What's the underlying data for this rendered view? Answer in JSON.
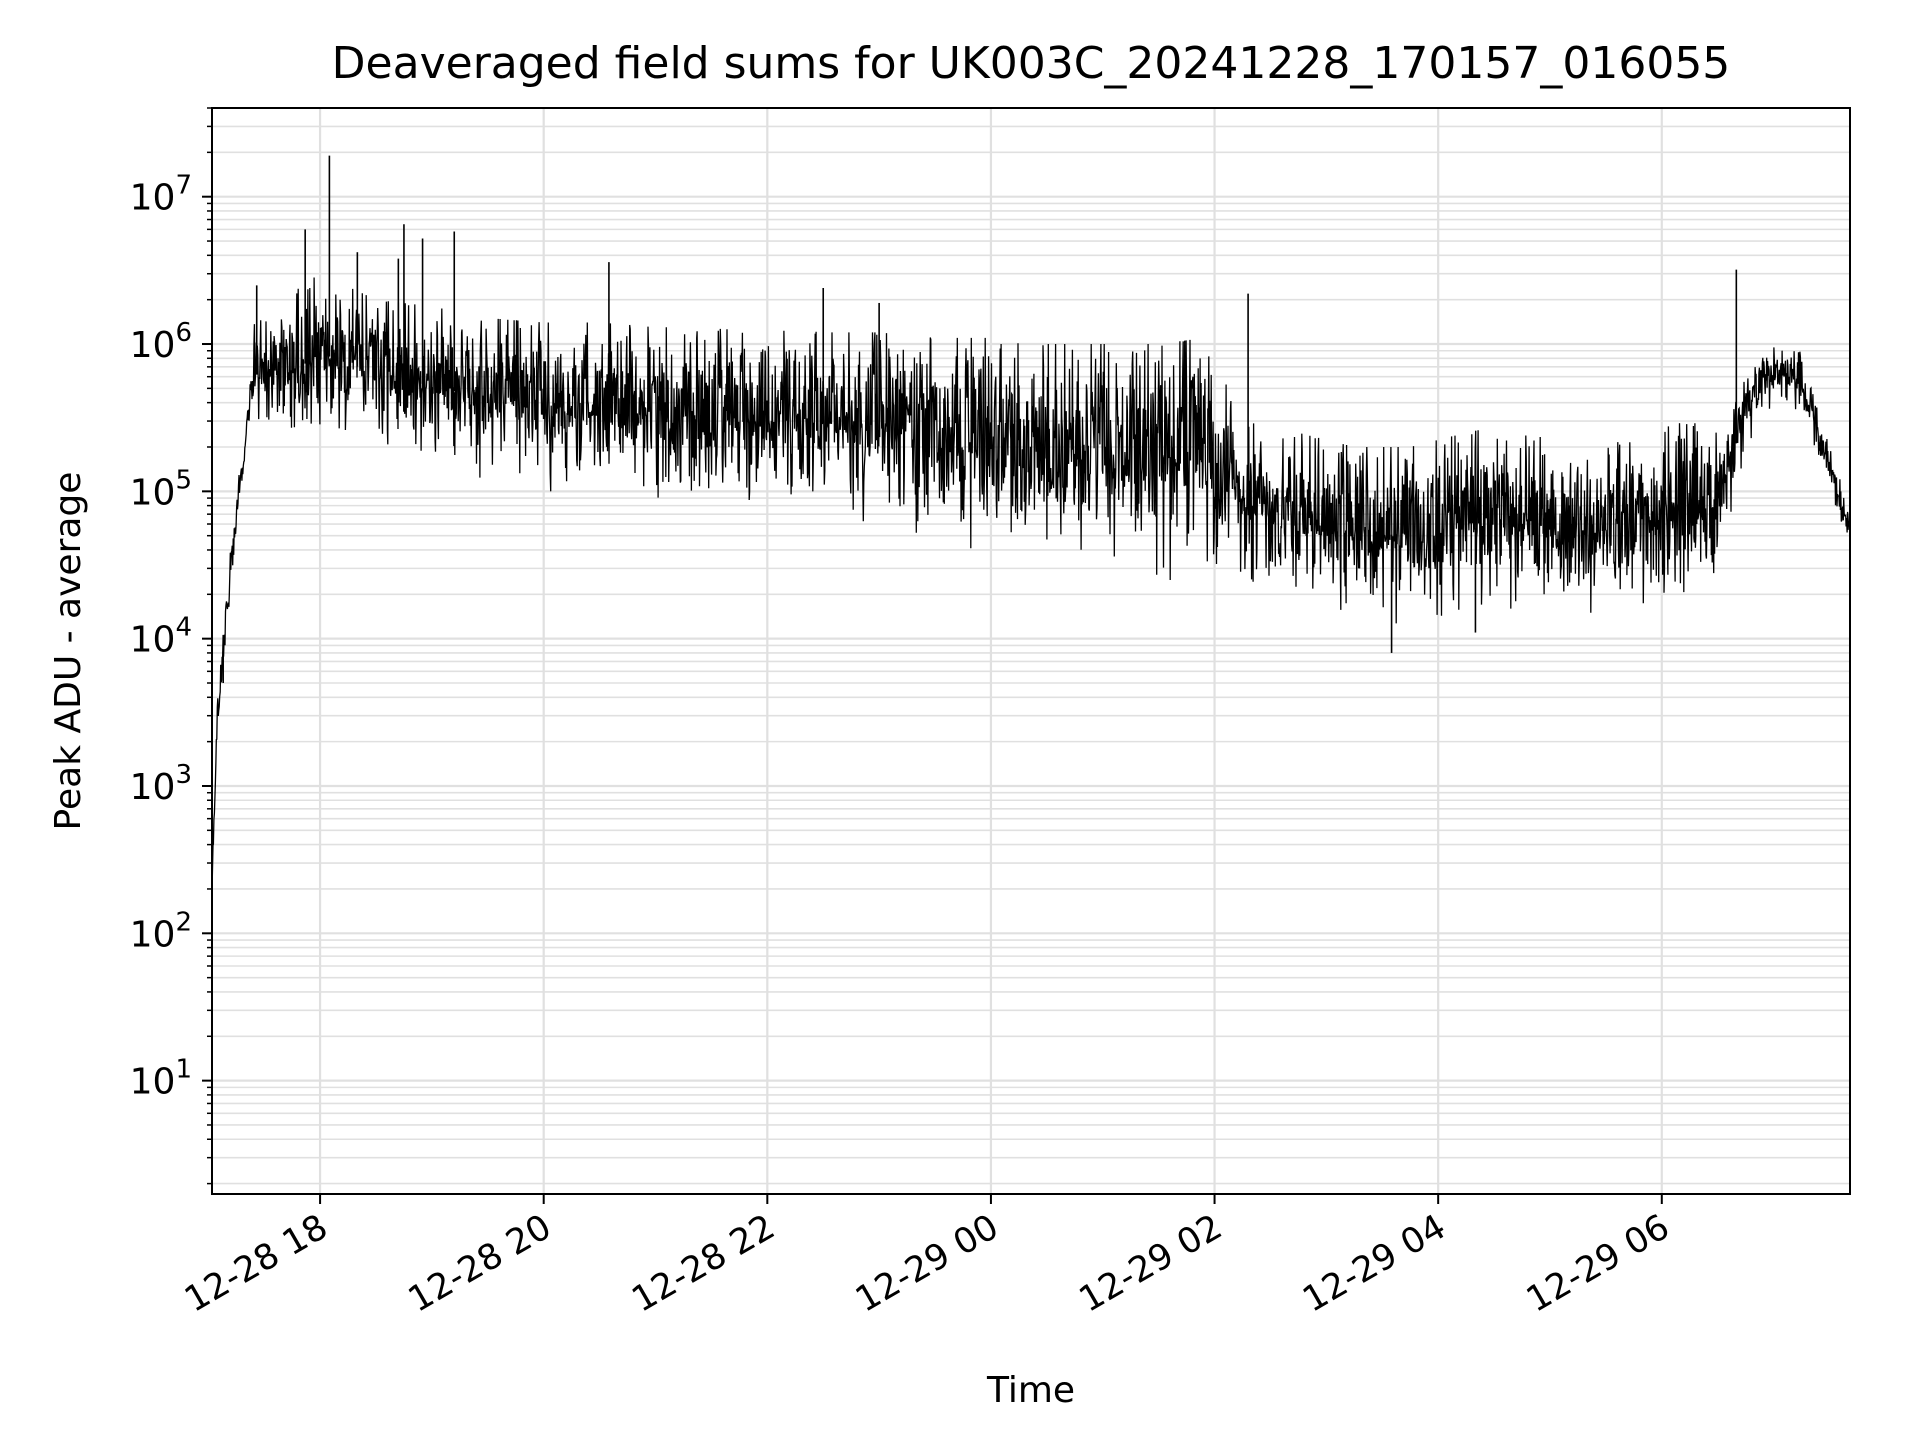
{
  "chart_data": {
    "type": "line",
    "title": "Deaveraged field sums for UK003C_20241228_170157_016055",
    "xlabel": "Time",
    "ylabel": "Peak ADU - average",
    "yscale": "log",
    "ylim": [
      1.7,
      40000000
    ],
    "xlim": [
      "2024-12-28 17:02",
      "2024-12-29 07:41"
    ],
    "grid": "both (major and minor), light gray",
    "legend": "none",
    "line_color": "#000000",
    "grid_color": "#e0e0e0",
    "x_ticks": [
      {
        "label": "12-28 18",
        "time": "2024-12-28 18:00"
      },
      {
        "label": "12-28 20",
        "time": "2024-12-28 20:00"
      },
      {
        "label": "12-28 22",
        "time": "2024-12-28 22:00"
      },
      {
        "label": "12-29 00",
        "time": "2024-12-29 00:00"
      },
      {
        "label": "12-29 02",
        "time": "2024-12-29 02:00"
      },
      {
        "label": "12-29 04",
        "time": "2024-12-29 04:00"
      },
      {
        "label": "12-29 06",
        "time": "2024-12-29 06:00"
      }
    ],
    "y_ticks": [
      {
        "base": "10",
        "exp": "1",
        "value": 10
      },
      {
        "base": "10",
        "exp": "2",
        "value": 100
      },
      {
        "base": "10",
        "exp": "3",
        "value": 1000
      },
      {
        "base": "10",
        "exp": "4",
        "value": 10000
      },
      {
        "base": "10",
        "exp": "5",
        "value": 100000
      },
      {
        "base": "10",
        "exp": "6",
        "value": 1000000
      },
      {
        "base": "10",
        "exp": "7",
        "value": 10000000
      }
    ],
    "series": [
      {
        "envelope": [
          {
            "time": "2024-12-28 17:02",
            "low": 150,
            "high": 300
          },
          {
            "time": "2024-12-28 17:05",
            "low": 2000,
            "high": 5000
          },
          {
            "time": "2024-12-28 17:10",
            "low": 8000,
            "high": 30000
          },
          {
            "time": "2024-12-28 17:15",
            "low": 40000,
            "high": 120000
          },
          {
            "time": "2024-12-28 17:20",
            "low": 150000,
            "high": 300000
          },
          {
            "time": "2024-12-28 17:25",
            "low": 250000,
            "high": 1500000
          },
          {
            "time": "2024-12-28 17:35",
            "low": 300000,
            "high": 1600000
          },
          {
            "time": "2024-12-28 17:50",
            "low": 200000,
            "high": 2500000
          },
          {
            "time": "2024-12-28 18:00",
            "low": 250000,
            "high": 3000000
          },
          {
            "time": "2024-12-28 18:30",
            "low": 200000,
            "high": 2000000
          },
          {
            "time": "2024-12-28 19:00",
            "low": 150000,
            "high": 1800000
          },
          {
            "time": "2024-12-28 19:30",
            "low": 120000,
            "high": 1500000
          },
          {
            "time": "2024-12-28 20:00",
            "low": 100000,
            "high": 1400000
          },
          {
            "time": "2024-12-28 20:30",
            "low": 100000,
            "high": 1400000
          },
          {
            "time": "2024-12-28 21:00",
            "low": 80000,
            "high": 1300000
          },
          {
            "time": "2024-12-28 21:30",
            "low": 80000,
            "high": 1300000
          },
          {
            "time": "2024-12-28 22:00",
            "low": 80000,
            "high": 1300000
          },
          {
            "time": "2024-12-28 22:30",
            "low": 70000,
            "high": 1200000
          },
          {
            "time": "2024-12-28 23:00",
            "low": 60000,
            "high": 1200000
          },
          {
            "time": "2024-12-28 23:30",
            "low": 40000,
            "high": 1100000
          },
          {
            "time": "2024-12-29 00:00",
            "low": 35000,
            "high": 1100000
          },
          {
            "time": "2024-12-29 00:30",
            "low": 30000,
            "high": 1000000
          },
          {
            "time": "2024-12-29 01:00",
            "low": 25000,
            "high": 1000000
          },
          {
            "time": "2024-12-29 01:30",
            "low": 25000,
            "high": 1000000
          },
          {
            "time": "2024-12-29 01:55",
            "low": 25000,
            "high": 1100000
          },
          {
            "time": "2024-12-29 02:15",
            "low": 20000,
            "high": 300000
          },
          {
            "time": "2024-12-29 02:45",
            "low": 18000,
            "high": 250000
          },
          {
            "time": "2024-12-29 03:15",
            "low": 15000,
            "high": 200000
          },
          {
            "time": "2024-12-29 03:45",
            "low": 12000,
            "high": 200000
          },
          {
            "time": "2024-12-29 04:15",
            "low": 12000,
            "high": 250000
          },
          {
            "time": "2024-12-29 04:45",
            "low": 14000,
            "high": 300000
          },
          {
            "time": "2024-12-29 05:15",
            "low": 15000,
            "high": 150000
          },
          {
            "time": "2024-12-29 05:45",
            "low": 15000,
            "high": 250000
          },
          {
            "time": "2024-12-29 06:15",
            "low": 15000,
            "high": 300000
          },
          {
            "time": "2024-12-29 06:30",
            "low": 25000,
            "high": 250000
          },
          {
            "time": "2024-12-29 06:45",
            "low": 200000,
            "high": 600000
          },
          {
            "time": "2024-12-29 07:00",
            "low": 400000,
            "high": 1000000
          },
          {
            "time": "2024-12-29 07:15",
            "low": 300000,
            "high": 900000
          },
          {
            "time": "2024-12-29 07:30",
            "low": 100000,
            "high": 200000
          },
          {
            "time": "2024-12-29 07:41",
            "low": 40000,
            "high": 80000
          }
        ],
        "spikes": [
          {
            "time": "2024-12-28 17:26",
            "value": 2500000
          },
          {
            "time": "2024-12-28 17:52",
            "value": 6000000
          },
          {
            "time": "2024-12-28 18:05",
            "value": 19000000
          },
          {
            "time": "2024-12-28 18:20",
            "value": 4200000
          },
          {
            "time": "2024-12-28 18:42",
            "value": 3800000
          },
          {
            "time": "2024-12-28 18:45",
            "value": 6500000
          },
          {
            "time": "2024-12-28 18:55",
            "value": 5200000
          },
          {
            "time": "2024-12-28 19:12",
            "value": 5800000
          },
          {
            "time": "2024-12-28 20:35",
            "value": 3600000
          },
          {
            "time": "2024-12-28 22:30",
            "value": 2400000
          },
          {
            "time": "2024-12-28 23:00",
            "value": 1900000
          },
          {
            "time": "2024-12-29 02:18",
            "value": 2200000
          },
          {
            "time": "2024-12-29 06:40",
            "value": 3200000
          }
        ],
        "dips": [
          {
            "time": "2024-12-28 17:08",
            "value": 5000
          },
          {
            "time": "2024-12-29 03:35",
            "value": 8000
          },
          {
            "time": "2024-12-29 04:20",
            "value": 11000
          }
        ]
      }
    ]
  }
}
